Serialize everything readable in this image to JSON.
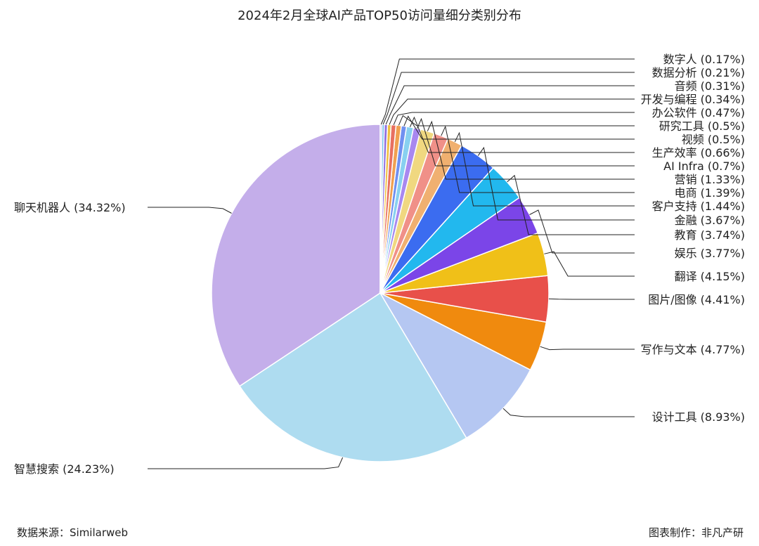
{
  "chart_data": {
    "type": "pie",
    "title": "2024年2月全球AI产品TOP50访问量细分类别分布",
    "slices": [
      {
        "label": "聊天机器人 (34.32%)",
        "value": 34.32,
        "color": "#c4aeea"
      },
      {
        "label": "智慧搜索 (24.23%)",
        "value": 24.23,
        "color": "#aedcf0"
      },
      {
        "label": "设计工具 (8.93%)",
        "value": 8.93,
        "color": "#b5c7f2"
      },
      {
        "label": "写作与文本 (4.77%)",
        "value": 4.77,
        "color": "#f08a0e"
      },
      {
        "label": "图片/图像 (4.41%)",
        "value": 4.41,
        "color": "#e8504a"
      },
      {
        "label": "翻译 (4.15%)",
        "value": 4.15,
        "color": "#f0c018"
      },
      {
        "label": "娱乐 (3.77%)",
        "value": 3.77,
        "color": "#7b45e8"
      },
      {
        "label": "教育 (3.74%)",
        "value": 3.74,
        "color": "#22b8ee"
      },
      {
        "label": "金融 (3.67%)",
        "value": 3.67,
        "color": "#3b6cf0"
      },
      {
        "label": "客户支持 (1.44%)",
        "value": 1.44,
        "color": "#f0b070"
      },
      {
        "label": "电商 (1.39%)",
        "value": 1.39,
        "color": "#f09088"
      },
      {
        "label": "营销 (1.33%)",
        "value": 1.33,
        "color": "#f0d880"
      },
      {
        "label": "AI Infra (0.7%)",
        "value": 0.7,
        "color": "#a888f0"
      },
      {
        "label": "生产效率 (0.66%)",
        "value": 0.66,
        "color": "#88d0f0"
      },
      {
        "label": "视频 (0.5%)",
        "value": 0.5,
        "color": "#7090f0"
      },
      {
        "label": "研究工具 (0.5%)",
        "value": 0.5,
        "color": "#f0a050"
      },
      {
        "label": "办公软件 (0.47%)",
        "value": 0.47,
        "color": "#e87060"
      },
      {
        "label": "开发与编程 (0.34%)",
        "value": 0.34,
        "color": "#f0c040"
      },
      {
        "label": "音频 (0.31%)",
        "value": 0.31,
        "color": "#9070e0"
      },
      {
        "label": "数据分析 (0.21%)",
        "value": 0.21,
        "color": "#60b8e8"
      },
      {
        "label": "数字人 (0.17%)",
        "value": 0.17,
        "color": "#d0c0f0"
      }
    ]
  },
  "footer": {
    "source": "数据来源：Similarweb",
    "credit": "图表制作：非凡产研"
  }
}
